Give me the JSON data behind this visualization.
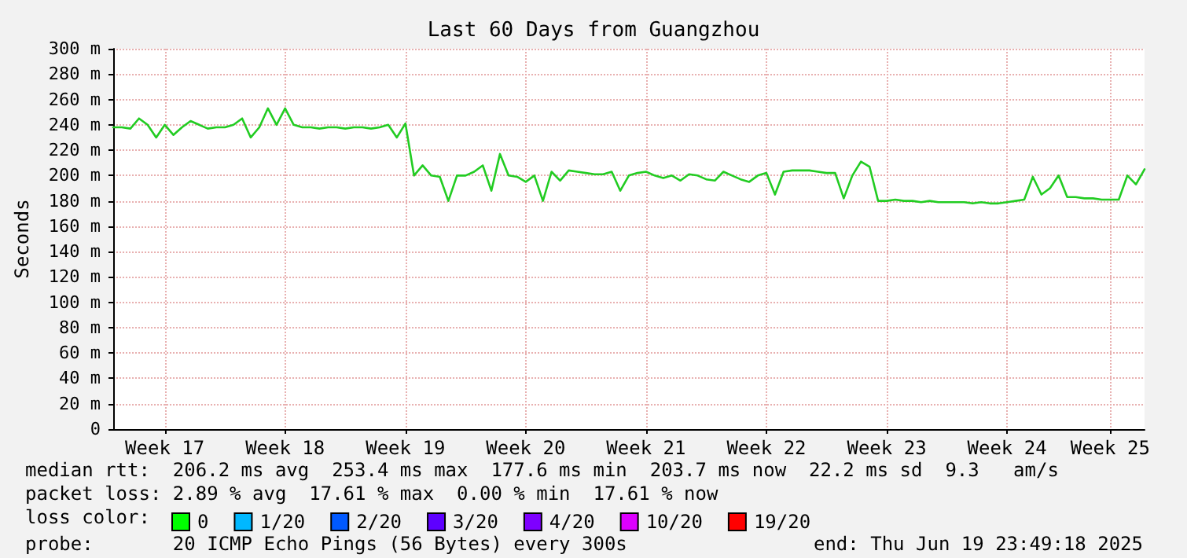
{
  "chart_data": {
    "type": "line",
    "title": "Last 60 Days from Guangzhou",
    "ylabel": "Seconds",
    "legend_title": "loss color:",
    "categories": [
      null,
      null,
      null,
      null,
      null,
      null,
      "Week 17",
      null,
      null,
      null,
      null,
      null,
      null,
      null,
      null,
      null,
      null,
      null,
      null,
      null,
      "Week 18",
      null,
      null,
      null,
      null,
      null,
      null,
      null,
      null,
      null,
      null,
      null,
      null,
      null,
      "Week 19",
      null,
      null,
      null,
      null,
      null,
      null,
      null,
      null,
      null,
      null,
      null,
      null,
      null,
      "Week 20",
      null,
      null,
      null,
      null,
      null,
      null,
      null,
      null,
      null,
      null,
      null,
      null,
      null,
      "Week 21",
      null,
      null,
      null,
      null,
      null,
      null,
      null,
      null,
      null,
      null,
      null,
      null,
      null,
      "Week 22",
      null,
      null,
      null,
      null,
      null,
      null,
      null,
      null,
      null,
      null,
      null,
      null,
      null,
      "Week 23",
      null,
      null,
      null,
      null,
      null,
      null,
      null,
      null,
      null,
      null,
      null,
      null,
      null,
      "Week 24",
      null,
      null,
      null,
      null,
      null,
      null,
      null,
      null,
      null,
      null,
      null,
      "Week 25",
      null,
      null,
      null,
      null
    ],
    "ylim": [
      0,
      300
    ],
    "yticks": [
      0,
      {
        "value": 20,
        "label": "20 m"
      },
      {
        "value": 40,
        "label": "40 m"
      },
      {
        "value": 60,
        "label": "60 m"
      },
      {
        "value": 80,
        "label": "80 m"
      },
      {
        "value": 100,
        "label": "100 m"
      },
      {
        "value": 120,
        "label": "120 m"
      },
      {
        "value": 140,
        "label": "140 m"
      },
      {
        "value": 160,
        "label": "160 m"
      },
      {
        "value": 180,
        "label": "180 m"
      },
      {
        "value": 200,
        "label": "200 m"
      },
      {
        "value": 220,
        "label": "220 m"
      },
      {
        "value": 240,
        "label": "240 m"
      },
      {
        "value": 260,
        "label": "260 m"
      },
      {
        "value": 280,
        "label": "280 m"
      },
      {
        "value": 300,
        "label": "300 m"
      }
    ],
    "grid": true,
    "legend": "bottom",
    "marker": "none",
    "line_style": "solid",
    "series": [
      {
        "color": "#22cc22",
        "values": [
          238,
          238,
          237,
          245,
          240,
          230,
          240,
          232,
          238,
          243,
          240,
          237,
          238,
          238,
          240,
          245,
          230,
          238,
          253,
          240,
          253,
          240,
          238,
          238,
          237,
          238,
          238,
          237,
          238,
          238,
          237,
          238,
          240,
          230,
          241,
          200,
          208,
          200,
          199,
          180,
          200,
          200,
          203,
          208,
          188,
          217,
          200,
          199,
          195,
          200,
          180,
          203,
          196,
          204,
          203,
          202,
          201,
          201,
          203,
          188,
          200,
          202,
          203,
          200,
          198,
          200,
          196,
          201,
          200,
          197,
          196,
          203,
          200,
          197,
          195,
          200,
          202,
          185,
          203,
          204,
          204,
          204,
          203,
          202,
          202,
          182,
          200,
          211,
          207,
          180,
          180,
          181,
          180,
          180,
          179,
          180,
          179,
          179,
          179,
          179,
          178,
          179,
          178,
          178,
          179,
          180,
          181,
          199,
          185,
          190,
          200,
          183,
          183,
          182,
          182,
          181,
          181,
          181,
          200,
          193,
          205
        ]
      },
      {
        "name": "0",
        "color": "#00ff00",
        "values": [
          null,
          null,
          null,
          null,
          null,
          null,
          null,
          null,
          null,
          null,
          null,
          null,
          null,
          null,
          null,
          null,
          null,
          null,
          null,
          null,
          null,
          null,
          null,
          null,
          null,
          null,
          null,
          null,
          null,
          null,
          null,
          null,
          null,
          null,
          null,
          null,
          null,
          null,
          null,
          null,
          null,
          null,
          null,
          null,
          null,
          null,
          null,
          null,
          null,
          null,
          null,
          null,
          null,
          null,
          null,
          null,
          null,
          null,
          null,
          null,
          null,
          null,
          null,
          null,
          null,
          null,
          null,
          null,
          null,
          null,
          null,
          null,
          null,
          null,
          null,
          null,
          null,
          null,
          null,
          null,
          null,
          null,
          null,
          null,
          null,
          null,
          null,
          null,
          null,
          null,
          null,
          null,
          null,
          null,
          null,
          null,
          null,
          null,
          null,
          null,
          null,
          null,
          null,
          null,
          null,
          null,
          null,
          null,
          null,
          null,
          null,
          null,
          null,
          null,
          null,
          null,
          null,
          null,
          null,
          null,
          null
        ]
      },
      {
        "name": "1/20",
        "color": "#00b8ff",
        "values": [
          null,
          null,
          null,
          null,
          null,
          null,
          null,
          null,
          null,
          null,
          null,
          null,
          null,
          null,
          null,
          null,
          null,
          null,
          null,
          null,
          null,
          null,
          null,
          null,
          null,
          null,
          null,
          null,
          null,
          null,
          null,
          null,
          null,
          null,
          null,
          null,
          null,
          null,
          null,
          null,
          null,
          null,
          null,
          null,
          null,
          null,
          null,
          null,
          null,
          null,
          null,
          null,
          null,
          null,
          null,
          null,
          null,
          null,
          null,
          null,
          null,
          null,
          null,
          null,
          null,
          null,
          null,
          null,
          null,
          null,
          null,
          null,
          null,
          null,
          null,
          null,
          null,
          null,
          null,
          null,
          null,
          null,
          null,
          null,
          null,
          null,
          null,
          null,
          null,
          null,
          null,
          null,
          null,
          null,
          null,
          null,
          null,
          null,
          null,
          null,
          null,
          null,
          null,
          null,
          null,
          null,
          null,
          null,
          null,
          null,
          null,
          null,
          null,
          null,
          null,
          null,
          null,
          null,
          null,
          null,
          null
        ]
      },
      {
        "name": "2/20",
        "color": "#0059ff",
        "values": [
          null,
          null,
          null,
          null,
          null,
          null,
          null,
          null,
          null,
          null,
          null,
          null,
          null,
          null,
          null,
          null,
          null,
          null,
          null,
          null,
          null,
          null,
          null,
          null,
          null,
          null,
          null,
          null,
          null,
          null,
          null,
          null,
          null,
          null,
          null,
          null,
          null,
          null,
          null,
          null,
          null,
          null,
          null,
          null,
          null,
          null,
          null,
          null,
          null,
          null,
          null,
          null,
          null,
          null,
          null,
          null,
          null,
          null,
          null,
          null,
          null,
          null,
          null,
          null,
          null,
          null,
          null,
          null,
          null,
          null,
          null,
          null,
          null,
          null,
          null,
          null,
          null,
          null,
          null,
          null,
          null,
          null,
          null,
          null,
          null,
          null,
          null,
          null,
          null,
          null,
          null,
          null,
          null,
          null,
          null,
          null,
          null,
          null,
          null,
          null,
          null,
          null,
          null,
          null,
          null,
          null,
          null,
          null,
          null,
          null,
          null,
          null,
          null,
          null,
          null,
          null,
          null,
          null,
          null,
          null,
          null
        ]
      },
      {
        "name": "3/20",
        "color": "#5e00ff",
        "values": [
          null,
          null,
          null,
          null,
          null,
          null,
          null,
          null,
          null,
          null,
          null,
          null,
          null,
          null,
          null,
          null,
          null,
          null,
          null,
          null,
          null,
          null,
          null,
          null,
          null,
          null,
          null,
          null,
          null,
          null,
          null,
          null,
          null,
          null,
          null,
          null,
          null,
          null,
          null,
          null,
          null,
          null,
          null,
          null,
          null,
          null,
          null,
          null,
          null,
          null,
          null,
          null,
          null,
          null,
          null,
          null,
          null,
          null,
          null,
          null,
          null,
          null,
          null,
          null,
          null,
          null,
          null,
          null,
          null,
          null,
          null,
          null,
          null,
          null,
          null,
          null,
          null,
          null,
          null,
          null,
          null,
          null,
          null,
          null,
          null,
          null,
          null,
          null,
          null,
          null,
          null,
          null,
          null,
          null,
          null,
          null,
          null,
          null,
          null,
          null,
          null,
          null,
          null,
          null,
          null,
          null,
          null,
          null,
          null,
          null,
          null,
          null,
          null,
          null,
          null,
          null,
          null,
          null,
          null,
          null,
          null
        ]
      },
      {
        "name": "4/20",
        "color": "#7e00ff",
        "values": [
          null,
          null,
          null,
          null,
          null,
          null,
          null,
          null,
          null,
          null,
          null,
          null,
          null,
          null,
          null,
          null,
          null,
          null,
          null,
          null,
          null,
          null,
          null,
          null,
          null,
          null,
          null,
          null,
          null,
          null,
          null,
          null,
          null,
          null,
          null,
          null,
          null,
          null,
          null,
          null,
          null,
          null,
          null,
          null,
          null,
          null,
          null,
          null,
          null,
          null,
          null,
          null,
          null,
          null,
          null,
          null,
          null,
          null,
          null,
          null,
          null,
          null,
          null,
          null,
          null,
          null,
          null,
          null,
          null,
          null,
          null,
          null,
          null,
          null,
          null,
          null,
          null,
          null,
          null,
          null,
          null,
          null,
          null,
          null,
          null,
          null,
          null,
          null,
          null,
          null,
          null,
          null,
          null,
          null,
          null,
          null,
          null,
          null,
          null,
          null,
          null,
          null,
          null,
          null,
          null,
          null,
          null,
          null,
          null,
          null,
          null,
          null,
          null,
          null,
          null,
          null,
          null,
          null,
          null,
          null,
          null
        ]
      },
      {
        "name": "10/20",
        "color": "#dd00ff",
        "values": [
          null,
          null,
          null,
          null,
          null,
          null,
          null,
          null,
          null,
          null,
          null,
          null,
          null,
          null,
          null,
          null,
          null,
          null,
          null,
          null,
          null,
          null,
          null,
          null,
          null,
          null,
          null,
          null,
          null,
          null,
          null,
          null,
          null,
          null,
          null,
          null,
          null,
          null,
          null,
          null,
          null,
          null,
          null,
          null,
          null,
          null,
          null,
          null,
          null,
          null,
          null,
          null,
          null,
          null,
          null,
          null,
          null,
          null,
          null,
          null,
          null,
          null,
          null,
          null,
          null,
          null,
          null,
          null,
          null,
          null,
          null,
          null,
          null,
          null,
          null,
          null,
          null,
          null,
          null,
          null,
          null,
          null,
          null,
          null,
          null,
          null,
          null,
          null,
          null,
          null,
          null,
          null,
          null,
          null,
          null,
          null,
          null,
          null,
          null,
          null,
          null,
          null,
          null,
          null,
          null,
          null,
          null,
          null,
          null,
          null,
          null,
          null,
          null,
          null,
          null,
          null,
          null,
          null,
          null,
          null,
          null
        ]
      },
      {
        "name": "19/20",
        "color": "#ff0000",
        "values": [
          null,
          null,
          null,
          null,
          null,
          null,
          null,
          null,
          null,
          null,
          null,
          null,
          null,
          null,
          null,
          null,
          null,
          null,
          null,
          null,
          null,
          null,
          null,
          null,
          null,
          null,
          null,
          null,
          null,
          null,
          null,
          null,
          null,
          null,
          null,
          null,
          null,
          null,
          null,
          null,
          null,
          null,
          null,
          null,
          null,
          null,
          null,
          null,
          null,
          null,
          null,
          null,
          null,
          null,
          null,
          null,
          null,
          null,
          null,
          null,
          null,
          null,
          null,
          null,
          null,
          null,
          null,
          null,
          null,
          null,
          null,
          null,
          null,
          null,
          null,
          null,
          null,
          null,
          null,
          null,
          null,
          null,
          null,
          null,
          null,
          null,
          null,
          null,
          null,
          null,
          null,
          null,
          null,
          null,
          null,
          null,
          null,
          null,
          null,
          null,
          null,
          null,
          null,
          null,
          null,
          null,
          null,
          null,
          null,
          null,
          null,
          null,
          null,
          null,
          null,
          null,
          null,
          null,
          null,
          null,
          null
        ]
      }
    ],
    "annotations": [
      "median rtt:  206.2 ms avg  253.4 ms max  177.6 ms min  203.7 ms now  22.2 ms sd  9.3   am/s",
      "packet loss: 2.89 % avg  17.61 % max  0.00 % min  17.61 % now",
      "probe:       20 ICMP Echo Pings (56 Bytes) every 300s",
      "end: Thu Jun 19 23:49:18 2025"
    ]
  }
}
